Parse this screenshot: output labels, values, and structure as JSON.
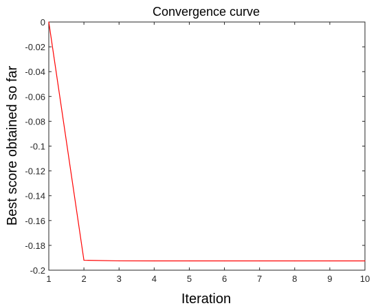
{
  "chart_data": {
    "type": "line",
    "title": "Convergence curve",
    "xlabel": "Iteration",
    "ylabel": "Best score obtained so far",
    "xlim": [
      1,
      10
    ],
    "ylim": [
      -0.2,
      0
    ],
    "xticks": [
      "1",
      "2",
      "3",
      "4",
      "5",
      "6",
      "7",
      "8",
      "9",
      "10"
    ],
    "yticks": [
      "0",
      "-0.02",
      "-0.04",
      "-0.06",
      "-0.08",
      "-0.1",
      "-0.12",
      "-0.14",
      "-0.16",
      "-0.18",
      "-0.2"
    ],
    "grid": false,
    "legend": false,
    "series": [
      {
        "x": [
          1,
          2,
          3,
          4,
          5,
          6,
          7,
          8,
          9,
          10
        ],
        "values": [
          0,
          -0.192,
          -0.1925,
          -0.1925,
          -0.1925,
          -0.1925,
          -0.1925,
          -0.1925,
          -0.1925,
          -0.1925
        ],
        "color": "#ff0000"
      }
    ]
  }
}
